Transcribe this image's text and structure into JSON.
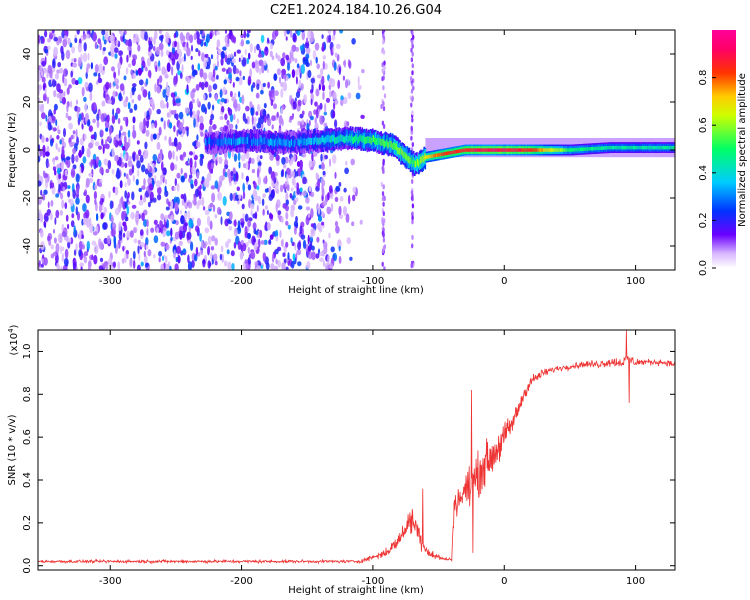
{
  "figure": {
    "title": "C2E1.2024.184.10.26.G04"
  },
  "chart_data": [
    {
      "type": "heatmap",
      "panel": "top",
      "title": "C2E1.2024.184.10.26.G04",
      "xlabel": "Height of straight line (km)",
      "ylabel": "Frequency (Hz)",
      "xlim": [
        -355,
        130
      ],
      "ylim": [
        -50,
        50
      ],
      "x_ticks": [
        -300,
        -200,
        -100,
        0,
        100
      ],
      "x_tick_labels": [
        "-300",
        "-200",
        "-100",
        "0",
        "100"
      ],
      "y_ticks": [
        -40,
        -20,
        0,
        20,
        40
      ],
      "y_tick_labels": [
        "-40",
        "-20",
        "0",
        "20",
        "40"
      ],
      "colorbar": {
        "label": "Normalized spectral amplitude",
        "range": [
          0,
          1
        ],
        "ticks": [
          0.0,
          0.2,
          0.4,
          0.6,
          0.8
        ],
        "tick_labels": [
          "0.0",
          "0.2",
          "0.4",
          "0.6",
          "0.8"
        ],
        "colormap": "rainbow (white→purple→blue→cyan→green→yellow→orange→red→magenta)"
      },
      "ridge": {
        "description": "signal frequency vs height",
        "x": [
          -225,
          -200,
          -160,
          -120,
          -100,
          -85,
          -75,
          -68,
          -60,
          -50,
          -40,
          -30,
          -20,
          -10,
          0,
          20,
          50,
          80,
          100,
          130
        ],
        "freq": [
          3,
          4,
          3,
          5,
          4,
          2,
          -3,
          -6,
          -3,
          -2,
          -1,
          0,
          0,
          0,
          0,
          0,
          0,
          1,
          1,
          1
        ],
        "amplitude": [
          0.25,
          0.3,
          0.3,
          0.45,
          0.5,
          0.55,
          0.6,
          0.55,
          0.7,
          0.8,
          0.85,
          0.85,
          0.9,
          0.9,
          0.9,
          0.85,
          0.5,
          0.45,
          0.45,
          0.45
        ]
      },
      "noise_region": {
        "x_range": [
          -355,
          -105
        ],
        "amplitude_range": [
          0.05,
          0.3
        ]
      }
    },
    {
      "type": "line",
      "panel": "bottom",
      "xlabel": "Height of straight line (km)",
      "ylabel": "SNR (10 * v/v)",
      "yscale_label": "(x10",
      "yscale_exponent": "4",
      "xlim": [
        -355,
        130
      ],
      "ylim": [
        -0.02,
        1.1
      ],
      "x_ticks": [
        -300,
        -200,
        -100,
        0,
        100
      ],
      "x_tick_labels": [
        "-300",
        "-200",
        "-100",
        "0",
        "100"
      ],
      "y_ticks": [
        0.0,
        0.2,
        0.4,
        0.6,
        0.8,
        1.0
      ],
      "y_tick_labels": [
        "0.0",
        "0.2",
        "0.4",
        "0.6",
        "0.8",
        "1.0"
      ],
      "color": "#ee3333",
      "series": [
        {
          "x": [
            -355,
            -300,
            -250,
            -200,
            -150,
            -110,
            -100,
            -90,
            -80,
            -75,
            -70,
            -65,
            -60,
            -55,
            -50,
            -45,
            -40,
            -38,
            -35,
            -30,
            -25,
            -20,
            -15,
            -10,
            -5,
            0,
            5,
            10,
            15,
            20,
            25,
            30,
            40,
            50,
            60,
            70,
            80,
            90,
            95,
            100,
            110,
            120,
            130
          ],
          "y": [
            0.02,
            0.02,
            0.02,
            0.02,
            0.02,
            0.02,
            0.04,
            0.06,
            0.12,
            0.18,
            0.22,
            0.15,
            0.08,
            0.05,
            0.04,
            0.03,
            0.03,
            0.3,
            0.3,
            0.35,
            0.38,
            0.42,
            0.48,
            0.5,
            0.55,
            0.6,
            0.65,
            0.72,
            0.8,
            0.86,
            0.88,
            0.9,
            0.92,
            0.93,
            0.94,
            0.94,
            0.95,
            0.95,
            0.96,
            0.95,
            0.95,
            0.95,
            0.94
          ],
          "noise_amplitude": [
            0.01,
            0.01,
            0.01,
            0.01,
            0.01,
            0.01,
            0.02,
            0.03,
            0.05,
            0.07,
            0.1,
            0.08,
            0.05,
            0.03,
            0.02,
            0.01,
            0.01,
            0.08,
            0.1,
            0.12,
            0.14,
            0.15,
            0.15,
            0.12,
            0.12,
            0.1,
            0.08,
            0.06,
            0.05,
            0.04,
            0.03,
            0.03,
            0.02,
            0.02,
            0.02,
            0.03,
            0.03,
            0.04,
            0.05,
            0.03,
            0.02,
            0.02,
            0.02
          ],
          "spikes": [
            {
              "x": -62,
              "y": 0.36
            },
            {
              "x": -24,
              "y": 0.06
            },
            {
              "x": -25,
              "y": 0.82
            },
            {
              "x": 93,
              "y": 1.1
            },
            {
              "x": 95,
              "y": 0.76
            }
          ]
        }
      ]
    }
  ]
}
